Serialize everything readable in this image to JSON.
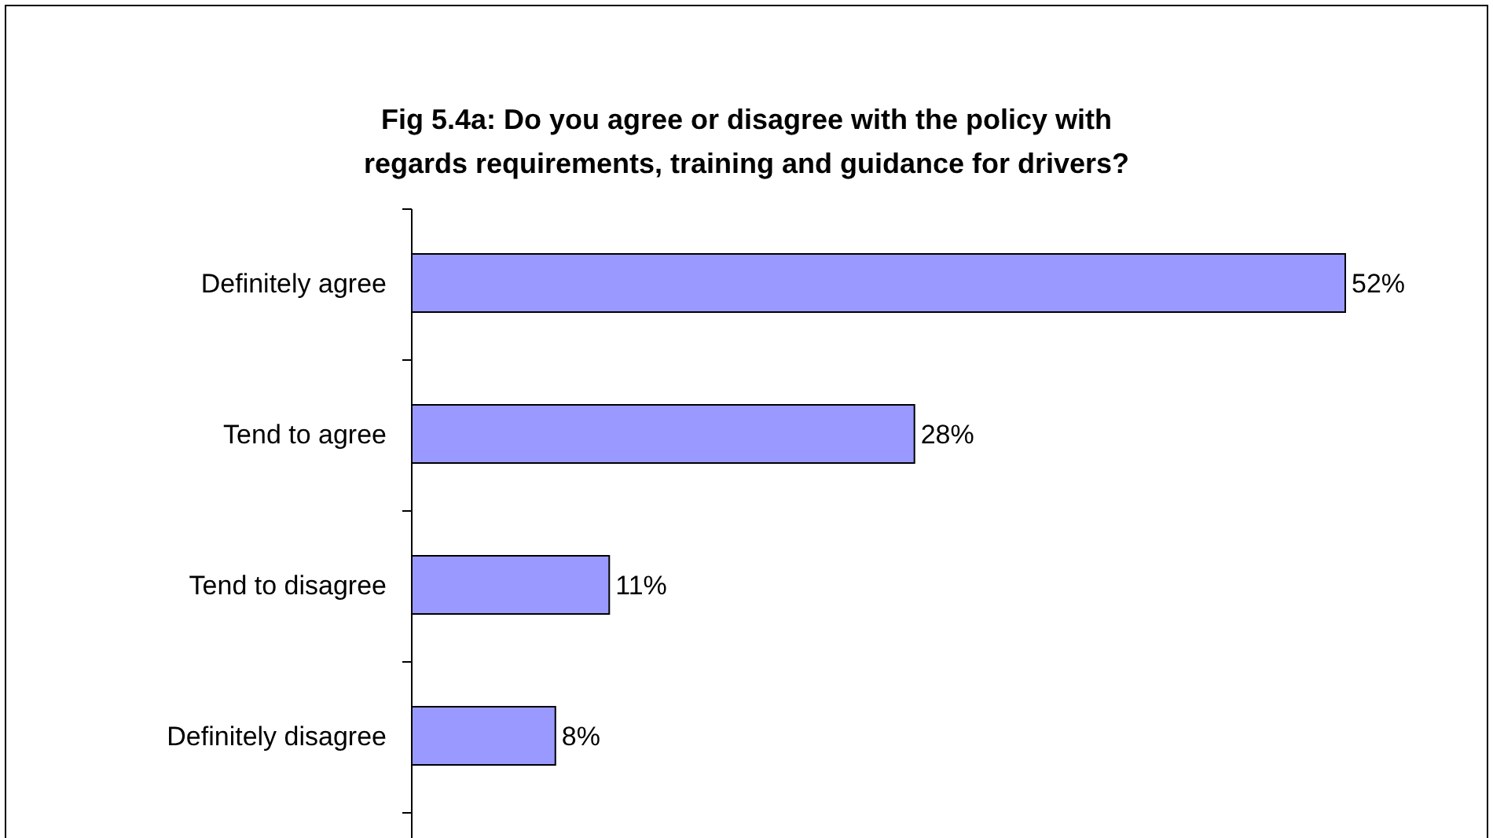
{
  "chart_data": {
    "type": "bar",
    "orientation": "horizontal",
    "title": "Fig 5.4a: Do you agree or disagree with the policy with regards requirements, training and guidance for drivers?",
    "categories": [
      "Definitely agree",
      "Tend to agree",
      "Tend to disagree",
      "Definitely disagree"
    ],
    "values": [
      52,
      28,
      11,
      8
    ],
    "value_labels": [
      "52%",
      "28%",
      "11%",
      "8%"
    ],
    "color": "#9999ff"
  }
}
